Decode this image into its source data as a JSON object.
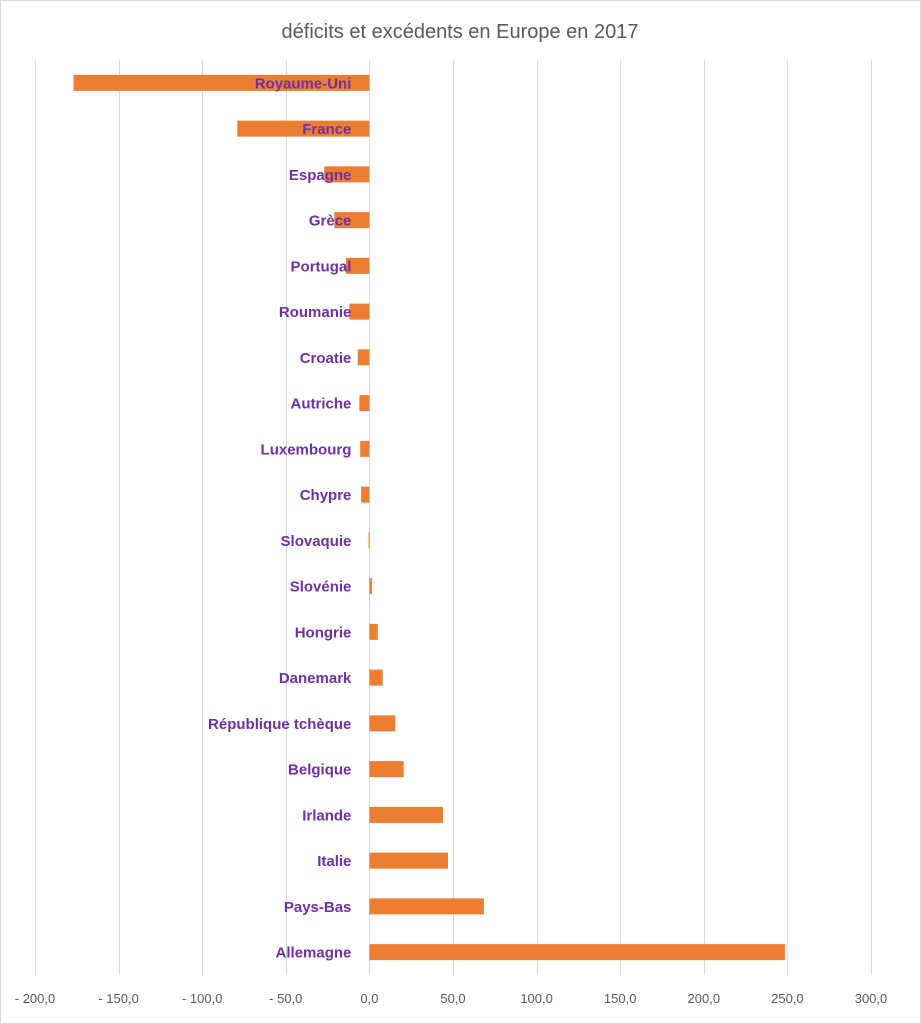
{
  "chart_data": {
    "type": "bar",
    "orientation": "horizontal",
    "title": "déficits et excédents en Europe en 2017",
    "xlabel": "",
    "ylabel": "",
    "xlim": [
      -200,
      300
    ],
    "ticks": [
      -200,
      -150,
      -100,
      -50,
      0,
      50,
      100,
      150,
      200,
      250,
      300
    ],
    "tick_labels": [
      "- 200,0",
      "- 150,0",
      "- 100,0",
      "- 50,0",
      "0,0",
      "50,0",
      "100,0",
      "150,0",
      "200,0",
      "250,0",
      "300,0"
    ],
    "grid": true,
    "legend": "none",
    "bar_color": "#ed7d31",
    "label_color": "#7030a0",
    "categories": [
      "Royaume-Uni",
      "France",
      "Espagne",
      "Grèce",
      "Portugal",
      "Roumanie",
      "Croatie",
      "Autriche",
      "Luxembourg",
      "Chypre",
      "Slovaquie",
      "Slovénie",
      "Hongrie",
      "Danemark",
      "République tchèque",
      "Belgique",
      "Irlande",
      "Italie",
      "Pays-Bas",
      "Allemagne"
    ],
    "values": [
      -177,
      -79,
      -27,
      -21,
      -14,
      -12,
      -7,
      -6,
      -5.5,
      -5,
      -0.5,
      1.5,
      5,
      8,
      15.5,
      20.5,
      44,
      47,
      68.5,
      248.5
    ]
  }
}
